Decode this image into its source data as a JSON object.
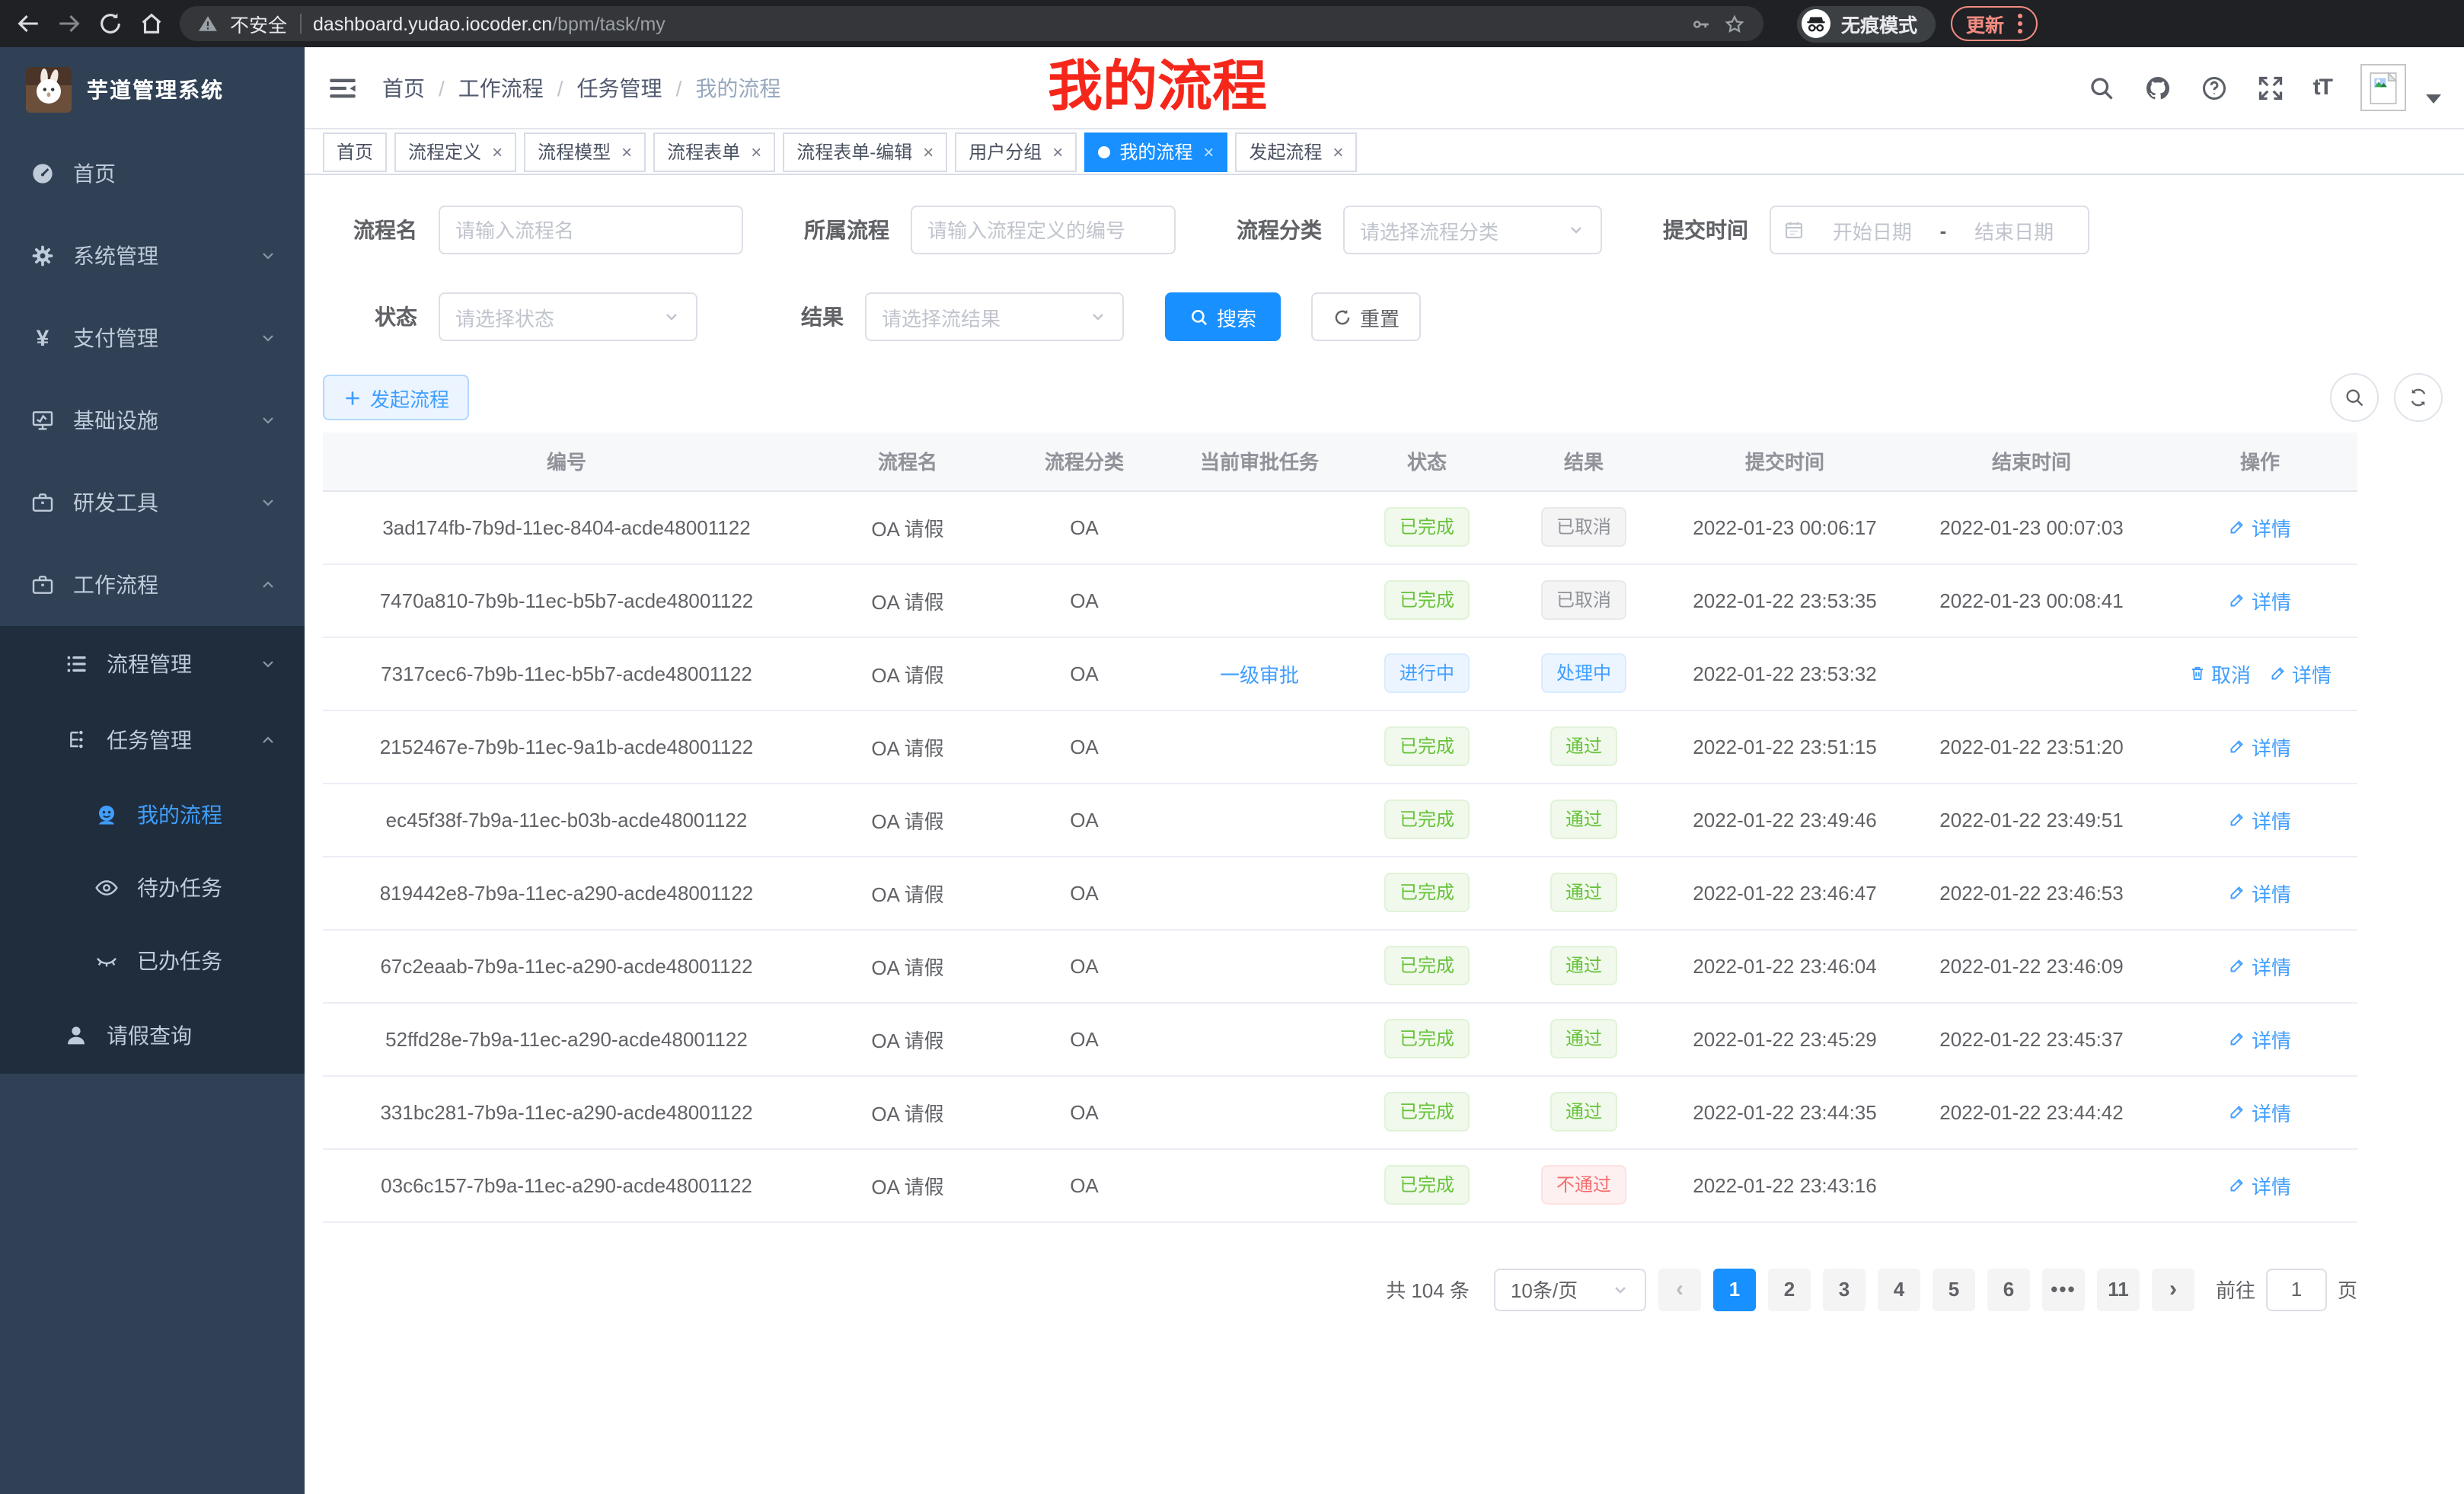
{
  "colors": {
    "accent_blue": "#1890ff",
    "link_blue": "#409eff",
    "sidebar_bg": "#304156",
    "submenu_bg": "#1f2d3d",
    "annotation_red": "#f5261a",
    "update_red": "#f28b82",
    "tag_success": "#67c23a",
    "tag_info": "#909399",
    "tag_primary": "#409eff",
    "tag_danger": "#f56c6c"
  },
  "browser": {
    "security_label": "不安全",
    "url_domain": "dashboard.yudao.iocoder.cn",
    "url_path": "/bpm/task/my",
    "incognito_label": "无痕模式",
    "update_label": "更新"
  },
  "sidebar": {
    "app_title": "芋道管理系统",
    "menu": [
      {
        "label": "首页",
        "icon": "dashboard-icon"
      },
      {
        "label": "系统管理",
        "icon": "gear-icon",
        "chevron": "down"
      },
      {
        "label": "支付管理",
        "icon": "yen-icon",
        "chevron": "down"
      },
      {
        "label": "基础设施",
        "icon": "monitor-icon",
        "chevron": "down"
      },
      {
        "label": "研发工具",
        "icon": "briefcase-icon",
        "chevron": "down"
      },
      {
        "label": "工作流程",
        "icon": "briefcase-icon",
        "chevron": "up",
        "children": [
          {
            "label": "流程管理",
            "icon": "list-icon",
            "chevron": "down"
          },
          {
            "label": "任务管理",
            "icon": "workflow-icon",
            "chevron": "up",
            "children": [
              {
                "label": "我的流程",
                "icon": "robot-icon",
                "active": true
              },
              {
                "label": "待办任务",
                "icon": "eye-icon"
              },
              {
                "label": "已办任务",
                "icon": "eye-closed-icon"
              }
            ]
          },
          {
            "label": "请假查询",
            "icon": "user-icon"
          }
        ]
      }
    ]
  },
  "navbar": {
    "breadcrumb": [
      "首页",
      "工作流程",
      "任务管理",
      "我的流程"
    ]
  },
  "annotation_text": "我的流程",
  "tabs": [
    {
      "label": "首页",
      "closable": false,
      "active": false
    },
    {
      "label": "流程定义",
      "closable": true,
      "active": false
    },
    {
      "label": "流程模型",
      "closable": true,
      "active": false
    },
    {
      "label": "流程表单",
      "closable": true,
      "active": false
    },
    {
      "label": "流程表单-编辑",
      "closable": true,
      "active": false
    },
    {
      "label": "用户分组",
      "closable": true,
      "active": false
    },
    {
      "label": "我的流程",
      "closable": true,
      "active": true
    },
    {
      "label": "发起流程",
      "closable": true,
      "active": false
    }
  ],
  "filters": {
    "name_label": "流程名",
    "name_placeholder": "请输入流程名",
    "definition_label": "所属流程",
    "definition_placeholder": "请输入流程定义的编号",
    "category_label": "流程分类",
    "category_placeholder": "请选择流程分类",
    "submit_time_label": "提交时间",
    "start_date_placeholder": "开始日期",
    "date_separator": "-",
    "end_date_placeholder": "结束日期",
    "status_label": "状态",
    "status_placeholder": "请选择状态",
    "result_label": "结果",
    "result_placeholder": "请选择流结果",
    "search_label": "搜索",
    "reset_label": "重置"
  },
  "toolbar": {
    "create_label": "发起流程"
  },
  "table": {
    "columns": [
      "编号",
      "流程名",
      "流程分类",
      "当前审批任务",
      "状态",
      "结果",
      "提交时间",
      "结束时间",
      "操作"
    ],
    "rows": [
      {
        "id": "3ad174fb-7b9d-11ec-8404-acde48001122",
        "name": "OA 请假",
        "category": "OA",
        "task": "",
        "status": {
          "label": "已完成",
          "type": "success"
        },
        "result": {
          "label": "已取消",
          "type": "info"
        },
        "submit_time": "2022-01-23 00:06:17",
        "end_time": "2022-01-23 00:07:03",
        "actions": [
          {
            "type": "detail",
            "label": "详情"
          }
        ]
      },
      {
        "id": "7470a810-7b9b-11ec-b5b7-acde48001122",
        "name": "OA 请假",
        "category": "OA",
        "task": "",
        "status": {
          "label": "已完成",
          "type": "success"
        },
        "result": {
          "label": "已取消",
          "type": "info"
        },
        "submit_time": "2022-01-22 23:53:35",
        "end_time": "2022-01-23 00:08:41",
        "actions": [
          {
            "type": "detail",
            "label": "详情"
          }
        ]
      },
      {
        "id": "7317cec6-7b9b-11ec-b5b7-acde48001122",
        "name": "OA 请假",
        "category": "OA",
        "task": "一级审批",
        "status": {
          "label": "进行中",
          "type": "primary"
        },
        "result": {
          "label": "处理中",
          "type": "primary"
        },
        "submit_time": "2022-01-22 23:53:32",
        "end_time": "",
        "actions": [
          {
            "type": "cancel",
            "label": "取消"
          },
          {
            "type": "detail",
            "label": "详情"
          }
        ]
      },
      {
        "id": "2152467e-7b9b-11ec-9a1b-acde48001122",
        "name": "OA 请假",
        "category": "OA",
        "task": "",
        "status": {
          "label": "已完成",
          "type": "success"
        },
        "result": {
          "label": "通过",
          "type": "success"
        },
        "submit_time": "2022-01-22 23:51:15",
        "end_time": "2022-01-22 23:51:20",
        "actions": [
          {
            "type": "detail",
            "label": "详情"
          }
        ]
      },
      {
        "id": "ec45f38f-7b9a-11ec-b03b-acde48001122",
        "name": "OA 请假",
        "category": "OA",
        "task": "",
        "status": {
          "label": "已完成",
          "type": "success"
        },
        "result": {
          "label": "通过",
          "type": "success"
        },
        "submit_time": "2022-01-22 23:49:46",
        "end_time": "2022-01-22 23:49:51",
        "actions": [
          {
            "type": "detail",
            "label": "详情"
          }
        ]
      },
      {
        "id": "819442e8-7b9a-11ec-a290-acde48001122",
        "name": "OA 请假",
        "category": "OA",
        "task": "",
        "status": {
          "label": "已完成",
          "type": "success"
        },
        "result": {
          "label": "通过",
          "type": "success"
        },
        "submit_time": "2022-01-22 23:46:47",
        "end_time": "2022-01-22 23:46:53",
        "actions": [
          {
            "type": "detail",
            "label": "详情"
          }
        ]
      },
      {
        "id": "67c2eaab-7b9a-11ec-a290-acde48001122",
        "name": "OA 请假",
        "category": "OA",
        "task": "",
        "status": {
          "label": "已完成",
          "type": "success"
        },
        "result": {
          "label": "通过",
          "type": "success"
        },
        "submit_time": "2022-01-22 23:46:04",
        "end_time": "2022-01-22 23:46:09",
        "actions": [
          {
            "type": "detail",
            "label": "详情"
          }
        ]
      },
      {
        "id": "52ffd28e-7b9a-11ec-a290-acde48001122",
        "name": "OA 请假",
        "category": "OA",
        "task": "",
        "status": {
          "label": "已完成",
          "type": "success"
        },
        "result": {
          "label": "通过",
          "type": "success"
        },
        "submit_time": "2022-01-22 23:45:29",
        "end_time": "2022-01-22 23:45:37",
        "actions": [
          {
            "type": "detail",
            "label": "详情"
          }
        ]
      },
      {
        "id": "331bc281-7b9a-11ec-a290-acde48001122",
        "name": "OA 请假",
        "category": "OA",
        "task": "",
        "status": {
          "label": "已完成",
          "type": "success"
        },
        "result": {
          "label": "通过",
          "type": "success"
        },
        "submit_time": "2022-01-22 23:44:35",
        "end_time": "2022-01-22 23:44:42",
        "actions": [
          {
            "type": "detail",
            "label": "详情"
          }
        ]
      },
      {
        "id": "03c6c157-7b9a-11ec-a290-acde48001122",
        "name": "OA 请假",
        "category": "OA",
        "task": "",
        "status": {
          "label": "已完成",
          "type": "success"
        },
        "result": {
          "label": "不通过",
          "type": "danger"
        },
        "submit_time": "2022-01-22 23:43:16",
        "end_time": "",
        "actions": [
          {
            "type": "detail",
            "label": "详情"
          }
        ]
      }
    ]
  },
  "pagination": {
    "total_label": "共 104 条",
    "page_size_label": "10条/页",
    "pages": [
      "1",
      "2",
      "3",
      "4",
      "5",
      "6"
    ],
    "ellipsis": "•••",
    "last_page": "11",
    "current_page": "1",
    "goto_label": "前往",
    "goto_value": "1",
    "unit_label": "页"
  }
}
